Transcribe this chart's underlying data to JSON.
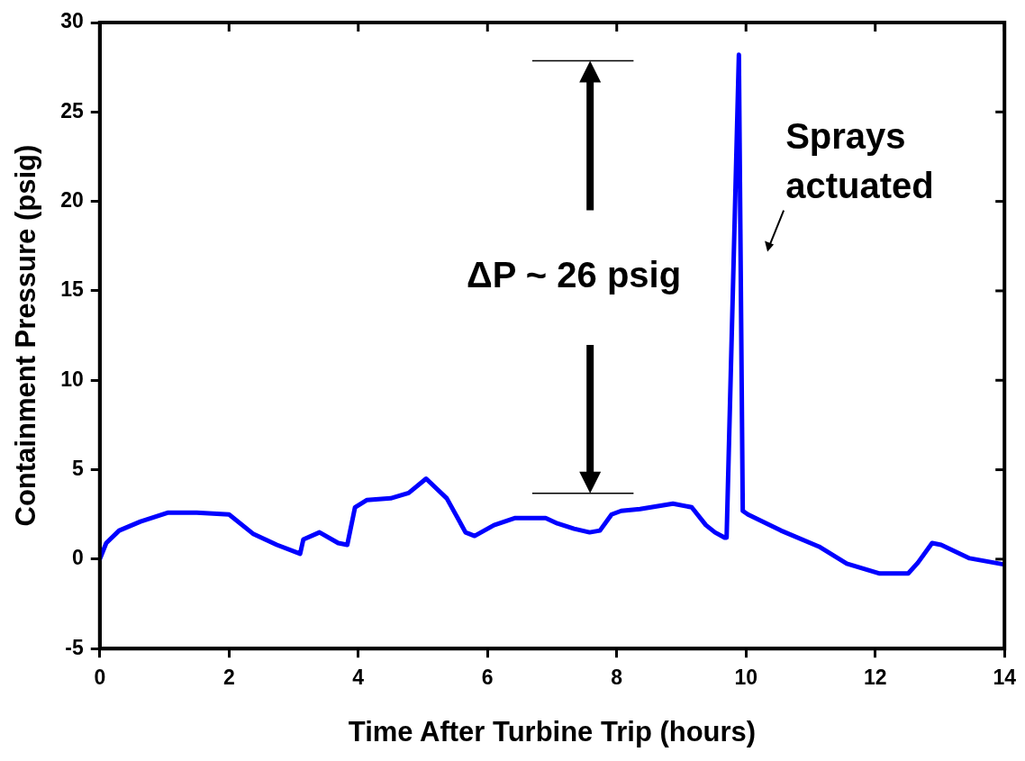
{
  "chart_data": {
    "type": "line",
    "xlabel": "Time After Turbine Trip (hours)",
    "ylabel": "Containment Pressure (psig)",
    "xlim": [
      0,
      14
    ],
    "xticks": [
      0,
      2,
      4,
      6,
      8,
      10,
      12,
      14
    ],
    "ylim": [
      -5,
      30
    ],
    "yticks": [
      -5,
      0,
      5,
      10,
      15,
      20,
      25,
      30
    ],
    "grid": false,
    "legend": false,
    "marker": "none",
    "line_style": "solid",
    "annotations": [
      "ΔP ~ 26 psig",
      "Sprays actuated"
    ],
    "series": [
      {
        "color": "#0000ff",
        "x": [
          0,
          0.1,
          0.3,
          0.63,
          1.06,
          1.5,
          2.0,
          2.38,
          2.74,
          3.1,
          3.15,
          3.4,
          3.69,
          3.83,
          3.95,
          4.13,
          4.5,
          4.78,
          5.05,
          5.37,
          5.66,
          5.8,
          6.1,
          6.43,
          6.9,
          7.08,
          7.34,
          7.58,
          7.74,
          7.92,
          8.07,
          8.36,
          8.87,
          9.16,
          9.38,
          9.52,
          9.67,
          9.7,
          9.89,
          9.95,
          10.03,
          10.54,
          11.13,
          11.56,
          12.07,
          12.51,
          12.66,
          12.88,
          13.02,
          13.46,
          14
        ],
        "values": [
          0,
          0.9,
          1.6,
          2.1,
          2.6,
          2.6,
          2.5,
          1.4,
          0.8,
          0.3,
          1.1,
          1.5,
          0.9,
          0.8,
          2.9,
          3.3,
          3.4,
          3.7,
          4.5,
          3.4,
          1.5,
          1.3,
          1.9,
          2.3,
          2.3,
          2.0,
          1.7,
          1.5,
          1.6,
          2.5,
          2.7,
          2.8,
          3.1,
          2.9,
          1.9,
          1.5,
          1.2,
          1.2,
          28.2,
          2.7,
          2.5,
          1.6,
          0.7,
          -0.25,
          -0.8,
          -0.8,
          -0.2,
          0.9,
          0.8,
          0.05,
          -0.3
        ]
      }
    ]
  }
}
